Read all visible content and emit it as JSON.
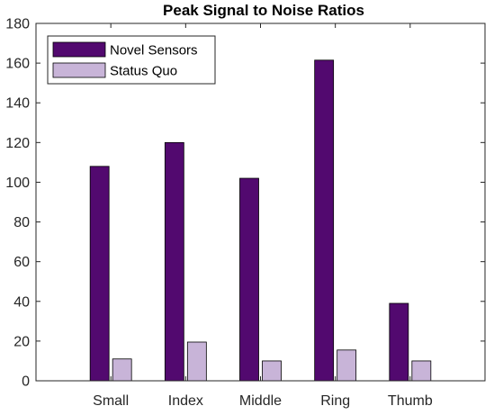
{
  "chart_data": {
    "type": "bar",
    "title": "Peak Signal to Noise Ratios",
    "xlabel": "",
    "ylabel": "",
    "categories": [
      "Small",
      "Index",
      "Middle",
      "Ring",
      "Thumb"
    ],
    "series": [
      {
        "name": "Novel Sensors",
        "color": "#52096f",
        "values": [
          108,
          120,
          102,
          161.5,
          39
        ]
      },
      {
        "name": "Status Quo",
        "color": "#c8b4d8",
        "values": [
          11,
          19.5,
          10,
          15.5,
          10
        ]
      }
    ],
    "ylim": [
      0,
      180
    ],
    "yticks": [
      0,
      20,
      40,
      60,
      80,
      100,
      120,
      140,
      160,
      180
    ],
    "grid": false,
    "legend_position": "top-left"
  }
}
